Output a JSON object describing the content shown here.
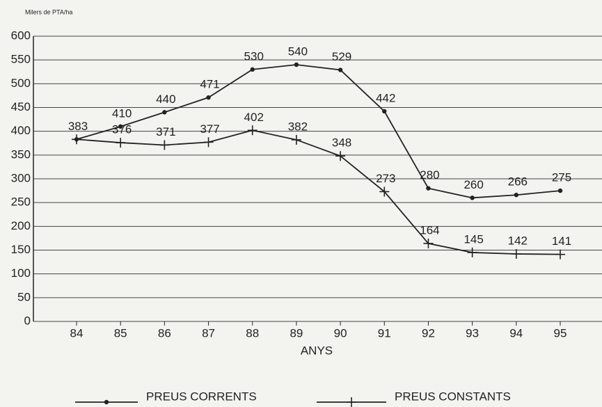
{
  "chart_data": {
    "type": "line",
    "y_label": "Milers de PTA/ha",
    "x_label": "ANYS",
    "categories": [
      "84",
      "85",
      "86",
      "87",
      "88",
      "89",
      "90",
      "91",
      "92",
      "93",
      "94",
      "95"
    ],
    "series": [
      {
        "name": "PREUS CORRENTS",
        "color": "#222222",
        "marker": "dot",
        "values": [
          383,
          410,
          440,
          471,
          530,
          540,
          529,
          442,
          280,
          260,
          266,
          275
        ]
      },
      {
        "name": "PREUS CONSTANTS",
        "color": "#222222",
        "marker": "plus",
        "values": [
          383,
          376,
          371,
          377,
          402,
          382,
          348,
          273,
          164,
          145,
          142,
          141
        ]
      }
    ],
    "ylim": [
      0,
      600
    ],
    "yticks": [
      0,
      50,
      100,
      150,
      200,
      250,
      300,
      350,
      400,
      450,
      500,
      550,
      600
    ],
    "grid": true,
    "legend": "bottom"
  }
}
